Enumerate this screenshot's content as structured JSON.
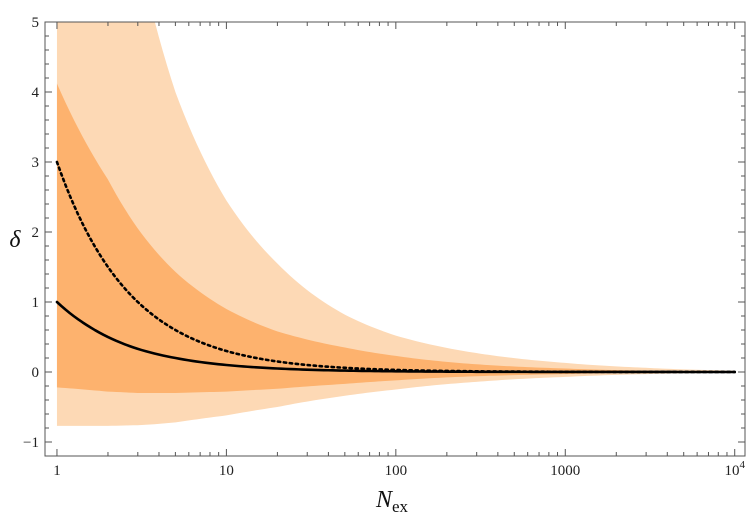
{
  "chart_data": {
    "type": "area",
    "xlabel": "N",
    "xlabel_sub": "ex",
    "ylabel": "δ",
    "x_scale": "log",
    "xlim": [
      0.85,
      11500
    ],
    "ylim": [
      -1.2,
      5
    ],
    "x_ticks": [
      {
        "value": 1,
        "label": "1"
      },
      {
        "value": 10,
        "label": "10"
      },
      {
        "value": 100,
        "label": "100"
      },
      {
        "value": 1000,
        "label": "1000"
      },
      {
        "value": 10000,
        "label": "10",
        "sup": "4"
      }
    ],
    "y_ticks": [
      {
        "value": -1,
        "label": "−1"
      },
      {
        "value": 0,
        "label": "0"
      },
      {
        "value": 1,
        "label": "1"
      },
      {
        "value": 2,
        "label": "2"
      },
      {
        "value": 3,
        "label": "3"
      },
      {
        "value": 4,
        "label": "4"
      },
      {
        "value": 5,
        "label": "5"
      }
    ],
    "grid": false,
    "colors": {
      "outer_band": "#fdd9b5",
      "inner_band": "#fdb26e",
      "line": "#000000",
      "frame": "#555555"
    },
    "outer_band": {
      "x": [
        1,
        2,
        3,
        3.6,
        5,
        10,
        20,
        50,
        100,
        300,
        1000,
        3000,
        10000
      ],
      "upper": [
        20,
        8.4,
        6.0,
        5.2,
        4.0,
        2.45,
        1.55,
        0.82,
        0.52,
        0.27,
        0.13,
        0.06,
        0.02
      ],
      "lower": [
        -0.77,
        -0.77,
        -0.76,
        -0.75,
        -0.72,
        -0.62,
        -0.5,
        -0.34,
        -0.25,
        -0.14,
        -0.07,
        -0.03,
        -0.01
      ]
    },
    "inner_band": {
      "x": [
        1,
        2,
        3,
        5,
        10,
        20,
        50,
        100,
        300,
        1000,
        3000,
        10000
      ],
      "upper": [
        4.12,
        2.75,
        2.05,
        1.43,
        0.9,
        0.58,
        0.35,
        0.23,
        0.11,
        0.05,
        0.02,
        0.01
      ],
      "lower": [
        -0.22,
        -0.28,
        -0.3,
        -0.3,
        -0.28,
        -0.24,
        -0.17,
        -0.12,
        -0.06,
        -0.03,
        -0.01,
        0
      ]
    },
    "series": [
      {
        "style": "solid",
        "x": [
          1,
          1.5,
          2,
          3,
          5,
          10,
          20,
          50,
          100,
          1000,
          10000
        ],
        "values": [
          1.0,
          0.67,
          0.5,
          0.33,
          0.2,
          0.1,
          0.05,
          0.02,
          0.01,
          0.001,
          0.0001
        ]
      },
      {
        "style": "dotted",
        "x": [
          1,
          1.5,
          2,
          3,
          5,
          10,
          20,
          50,
          100,
          1000,
          10000
        ],
        "values": [
          3.0,
          2.0,
          1.5,
          1.0,
          0.6,
          0.3,
          0.15,
          0.06,
          0.03,
          0.003,
          0.0003
        ]
      }
    ]
  }
}
